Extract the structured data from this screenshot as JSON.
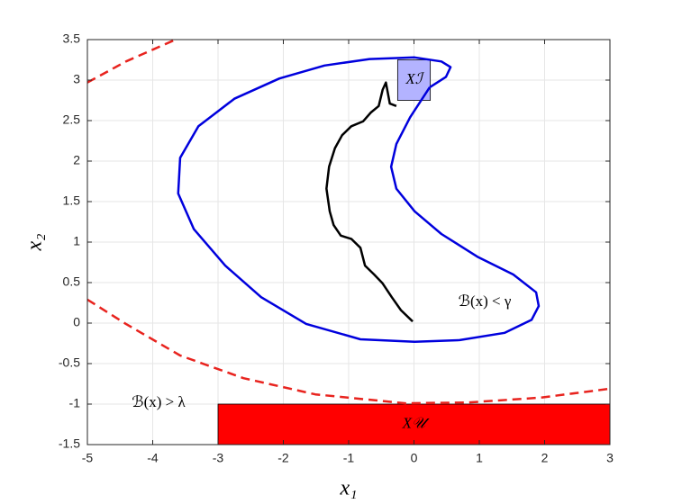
{
  "chart_data": {
    "type": "line",
    "xlabel": "x₁",
    "ylabel": "x₂",
    "xlim": [
      -5,
      3
    ],
    "ylim": [
      -1.5,
      3.5
    ],
    "xticks": [
      -5,
      -4,
      -3,
      -2,
      -1,
      0,
      1,
      2,
      3
    ],
    "yticks": [
      -1.5,
      -1,
      -0.5,
      0,
      0.5,
      1,
      1.5,
      2,
      2.5,
      3,
      3.5
    ],
    "grid": true,
    "regions": [
      {
        "label": "Xℐ",
        "x": [
          -0.25,
          0.25
        ],
        "y": [
          2.75,
          3.25
        ],
        "color": "#b3b3ff"
      },
      {
        "label": "X𝒰",
        "x": [
          -3,
          3
        ],
        "y": [
          -1.5,
          -1
        ],
        "color": "#ff0000"
      }
    ],
    "series": [
      {
        "color": "#0000dd",
        "style": "solid",
        "x": [
          0.24,
          -0.06,
          -0.27,
          -0.35,
          -0.27,
          0.01,
          0.42,
          0.97,
          1.52,
          1.87,
          1.91,
          1.8,
          1.39,
          0.7,
          0.01,
          -0.82,
          -1.65,
          -2.34,
          -2.89,
          -3.37,
          -3.61,
          -3.58,
          -3.3,
          -2.75,
          -2.06,
          -1.37,
          -0.68,
          0.01,
          0.42,
          0.56,
          0.49,
          0.24
        ],
        "values": [
          2.91,
          2.54,
          2.21,
          1.93,
          1.66,
          1.38,
          1.1,
          0.82,
          0.6,
          0.38,
          0.21,
          0.04,
          -0.12,
          -0.21,
          -0.23,
          -0.2,
          -0.01,
          0.32,
          0.71,
          1.16,
          1.6,
          2.04,
          2.43,
          2.77,
          3.02,
          3.18,
          3.26,
          3.28,
          3.23,
          3.16,
          3.04,
          2.91
        ]
      },
      {
        "color": "#e8231e",
        "style": "dashed",
        "x": [
          -5,
          -4.41,
          -3.58,
          -2.61,
          -1.51,
          -0.13,
          0.83,
          1.94,
          3
        ],
        "values": [
          0.29,
          -0.01,
          -0.4,
          -0.68,
          -0.88,
          -0.99,
          -0.98,
          -0.92,
          -0.81
        ]
      },
      {
        "color": "#e8231e",
        "style": "dashed",
        "x": [
          -5,
          -4.41,
          -3.65
        ],
        "values": [
          2.97,
          3.23,
          3.5
        ]
      },
      {
        "color": "#000000",
        "style": "solid",
        "x": [
          -0.02,
          -0.2,
          -0.34,
          -0.48,
          -0.61,
          -0.75,
          -0.82,
          -0.96,
          -1.12,
          -1.23,
          -1.29,
          -1.34,
          -1.3,
          -1.21,
          -1.1,
          -0.96,
          -0.78,
          -0.66,
          -0.54,
          -0.48,
          -0.43,
          -0.37,
          -0.27
        ],
        "values": [
          0.02,
          0.16,
          0.32,
          0.49,
          0.6,
          0.71,
          0.93,
          1.04,
          1.08,
          1.21,
          1.38,
          1.66,
          1.93,
          2.16,
          2.32,
          2.43,
          2.49,
          2.6,
          2.68,
          2.88,
          2.97,
          2.71,
          2.68
        ]
      }
    ],
    "annotations": [
      "ℬ(x) < γ",
      "ℬ(x) > λ"
    ]
  }
}
